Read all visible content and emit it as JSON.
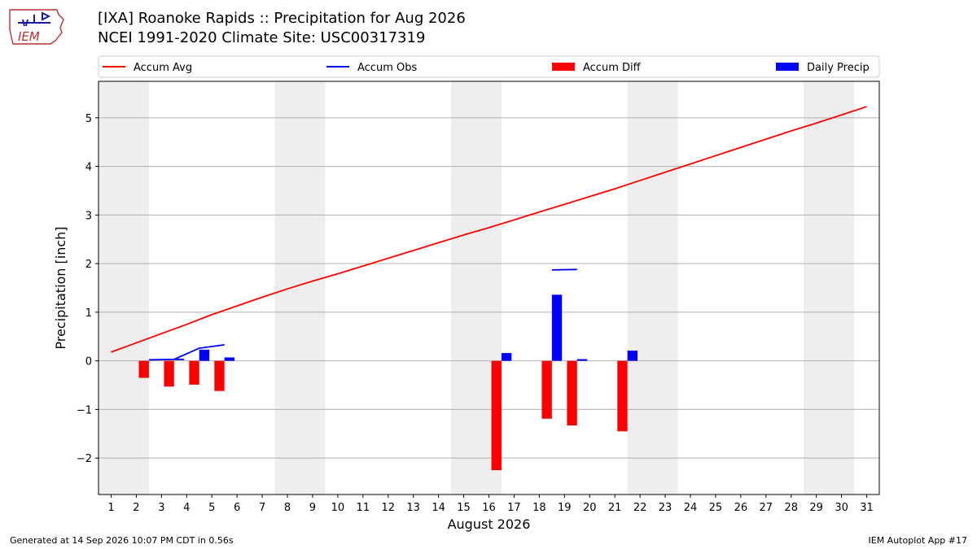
{
  "header": {
    "title_line1": "[IXA] Roanoke Rapids :: Precipitation for Aug 2026",
    "title_line2": "NCEI 1991-2020 Climate Site: USC00317319"
  },
  "logo": {
    "text": "IEM"
  },
  "footer": {
    "left": "Generated at 14 Sep 2026 10:07 PM CDT in 0.56s",
    "right": "IEM Autoplot App #17"
  },
  "colors": {
    "accum_avg": "#ff0000",
    "accum_obs": "#0000ff",
    "accum_diff": "#ff0000",
    "daily_precip": "#0000ff",
    "weekend_shade": "#eeeeee",
    "grid": "#b0b0b0"
  },
  "chart_data": {
    "type": "bar",
    "title": "[IXA] Roanoke Rapids :: Precipitation for Aug 2026",
    "subtitle": "NCEI 1991-2020 Climate Site: USC00317319",
    "xlabel": "August 2026",
    "ylabel": "Precipitation [inch]",
    "xlim": [
      0.5,
      31.5
    ],
    "ylim": [
      -2.75,
      5.75
    ],
    "x_ticks": [
      1,
      2,
      3,
      4,
      5,
      6,
      7,
      8,
      9,
      10,
      11,
      12,
      13,
      14,
      15,
      16,
      17,
      18,
      19,
      20,
      21,
      22,
      23,
      24,
      25,
      26,
      27,
      28,
      29,
      30,
      31
    ],
    "y_ticks": [
      -2,
      -1,
      0,
      1,
      2,
      3,
      4,
      5
    ],
    "y_tick_labels": [
      "−2",
      "−1",
      "0",
      "1",
      "2",
      "3",
      "4",
      "5"
    ],
    "grid": "horizontal",
    "legend_position": "top",
    "legend": [
      "Accum Avg",
      "Accum Obs",
      "Accum Diff",
      "Daily Precip"
    ],
    "weekend_spans": [
      [
        0.5,
        2.5
      ],
      [
        7.5,
        9.5
      ],
      [
        14.5,
        16.5
      ],
      [
        21.5,
        23.5
      ],
      [
        28.5,
        30.5
      ]
    ],
    "accum_avg": {
      "name": "Accum Avg",
      "x": [
        1,
        2,
        3,
        4,
        5,
        6,
        7,
        8,
        9,
        10,
        11,
        12,
        13,
        14,
        15,
        16,
        17,
        18,
        19,
        20,
        21,
        22,
        23,
        24,
        25,
        26,
        27,
        28,
        29,
        30,
        31
      ],
      "y": [
        0.18,
        0.37,
        0.56,
        0.75,
        0.95,
        1.13,
        1.31,
        1.48,
        1.64,
        1.79,
        1.95,
        2.11,
        2.27,
        2.43,
        2.59,
        2.74,
        2.9,
        3.06,
        3.22,
        3.38,
        3.54,
        3.71,
        3.88,
        4.05,
        4.22,
        4.39,
        4.56,
        4.73,
        4.89,
        5.06,
        5.23
      ]
    },
    "accum_obs": {
      "name": "Accum Obs",
      "segments": [
        {
          "x": [
            2,
            3,
            4,
            5
          ],
          "y": [
            0.02,
            0.03,
            0.26,
            0.33
          ]
        },
        {
          "x": [
            3.0,
            3.4
          ],
          "y": [
            0.03,
            0.03
          ]
        },
        {
          "x": [
            18,
            19
          ],
          "y": [
            1.87,
            1.88
          ]
        },
        {
          "x": [
            19.0,
            19.4
          ],
          "y": [
            0.02,
            0.02
          ]
        }
      ]
    },
    "accum_diff": {
      "name": "Accum Diff",
      "days": [
        2,
        3,
        4,
        5,
        16,
        18,
        19,
        21
      ],
      "values": [
        -0.35,
        -0.53,
        -0.49,
        -0.62,
        -2.25,
        -1.19,
        -1.33,
        -1.45
      ]
    },
    "daily_precip": {
      "name": "Daily Precip",
      "days": [
        4,
        5,
        16,
        18,
        19,
        21
      ],
      "values": [
        0.23,
        0.07,
        0.16,
        1.36,
        0.02,
        0.21
      ]
    }
  }
}
